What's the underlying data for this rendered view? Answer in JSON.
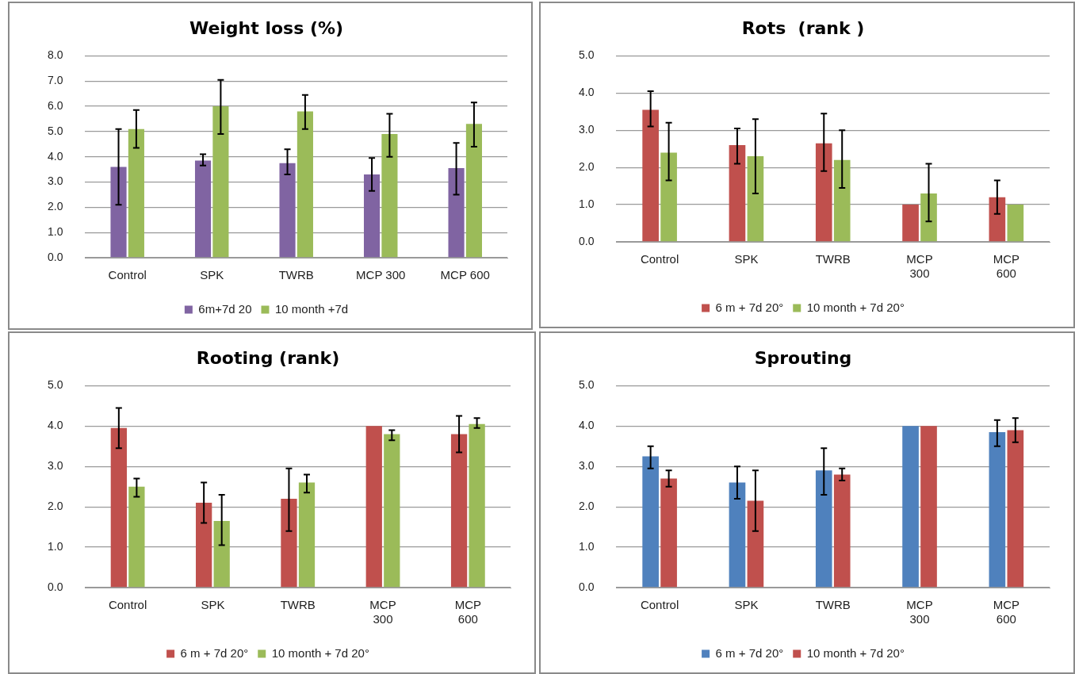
{
  "chart_data": [
    {
      "type": "bar",
      "title": "Weight loss (%)",
      "categories": [
        "Control",
        "SPK",
        "TWRB",
        "MCP 300",
        "MCP 600"
      ],
      "ylim": [
        0,
        8
      ],
      "yticks": [
        {
          "value": 0,
          "label": "0.0"
        },
        {
          "value": 1,
          "label": "1.0"
        },
        {
          "value": 2,
          "label": "2.0"
        },
        {
          "value": 3,
          "label": "3.0"
        },
        {
          "value": 4,
          "label": "4.0"
        },
        {
          "value": 5,
          "label": "5.0"
        },
        {
          "value": 6,
          "label": "6.0"
        },
        {
          "value": 7,
          "label": "7.0"
        },
        {
          "value": 8,
          "label": "8.0"
        }
      ],
      "grid": "y",
      "legend": "bottom",
      "series": [
        {
          "name": "6m+7d 20",
          "color": "#8064a2",
          "values": [
            3.6,
            3.85,
            3.75,
            3.3,
            3.55
          ],
          "errors": [
            [
              2.1,
              5.1
            ],
            [
              3.65,
              4.1
            ],
            [
              3.3,
              4.3
            ],
            [
              2.65,
              3.95
            ],
            [
              2.5,
              4.55
            ]
          ]
        },
        {
          "name": "10 month +7d",
          "color": "#9bbb59",
          "values": [
            5.1,
            6.0,
            5.8,
            4.9,
            5.3
          ],
          "errors": [
            [
              4.35,
              5.85
            ],
            [
              4.9,
              7.05
            ],
            [
              5.1,
              6.45
            ],
            [
              4.0,
              5.7
            ],
            [
              4.4,
              6.15
            ]
          ]
        }
      ]
    },
    {
      "type": "bar",
      "title": "Rots  (rank )",
      "categories": [
        "Control",
        "SPK",
        "TWRB",
        "MCP\n300",
        "MCP\n600"
      ],
      "ylim": [
        0,
        5
      ],
      "yticks": [
        {
          "value": 0,
          "label": "0.0"
        },
        {
          "value": 1,
          "label": "1.0"
        },
        {
          "value": 2,
          "label": "2.0"
        },
        {
          "value": 3,
          "label": "3.0"
        },
        {
          "value": 4,
          "label": "4.0"
        },
        {
          "value": 5,
          "label": "5.0"
        }
      ],
      "grid": "y",
      "legend": "bottom",
      "series": [
        {
          "name": "6 m + 7d 20°",
          "color": "#c0504d",
          "values": [
            3.55,
            2.6,
            2.65,
            1.0,
            1.2
          ],
          "errors": [
            [
              3.1,
              4.05
            ],
            [
              2.1,
              3.05
            ],
            [
              1.9,
              3.45
            ],
            null,
            [
              0.75,
              1.65
            ]
          ]
        },
        {
          "name": "10 month + 7d 20°",
          "color": "#9bbb59",
          "values": [
            2.4,
            2.3,
            2.2,
            1.3,
            1.0
          ],
          "errors": [
            [
              1.65,
              3.2
            ],
            [
              1.3,
              3.3
            ],
            [
              1.45,
              3.0
            ],
            [
              0.55,
              2.1
            ],
            null
          ]
        }
      ]
    },
    {
      "type": "bar",
      "title": "Rooting (rank)",
      "categories": [
        "Control",
        "SPK",
        "TWRB",
        "MCP\n300",
        "MCP\n600"
      ],
      "ylim": [
        0,
        5
      ],
      "yticks": [
        {
          "value": 0,
          "label": "0.0"
        },
        {
          "value": 1,
          "label": "1.0"
        },
        {
          "value": 2,
          "label": "2.0"
        },
        {
          "value": 3,
          "label": "3.0"
        },
        {
          "value": 4,
          "label": "4.0"
        },
        {
          "value": 5,
          "label": "5.0"
        }
      ],
      "grid": "y",
      "legend": "bottom",
      "series": [
        {
          "name": "6 m + 7d 20°",
          "color": "#c0504d",
          "values": [
            3.95,
            2.1,
            2.2,
            4.0,
            3.8
          ],
          "errors": [
            [
              3.45,
              4.45
            ],
            [
              1.6,
              2.6
            ],
            [
              1.4,
              2.95
            ],
            null,
            [
              3.35,
              4.25
            ]
          ]
        },
        {
          "name": "10 month + 7d 20°",
          "color": "#9bbb59",
          "values": [
            2.5,
            1.65,
            2.6,
            3.8,
            4.05
          ],
          "errors": [
            [
              2.25,
              2.7
            ],
            [
              1.05,
              2.3
            ],
            [
              2.35,
              2.8
            ],
            [
              3.65,
              3.9
            ],
            [
              3.95,
              4.2
            ]
          ]
        }
      ]
    },
    {
      "type": "bar",
      "title": "Sprouting",
      "categories": [
        "Control",
        "SPK",
        "TWRB",
        "MCP\n300",
        "MCP\n600"
      ],
      "ylim": [
        0,
        5
      ],
      "yticks": [
        {
          "value": 0,
          "label": "0.0"
        },
        {
          "value": 1,
          "label": "1.0"
        },
        {
          "value": 2,
          "label": "2.0"
        },
        {
          "value": 3,
          "label": "3.0"
        },
        {
          "value": 4,
          "label": "4.0"
        },
        {
          "value": 5,
          "label": "5.0"
        }
      ],
      "grid": "y",
      "legend": "bottom",
      "series": [
        {
          "name": "6 m + 7d 20°",
          "color": "#4f81bd",
          "values": [
            3.25,
            2.6,
            2.9,
            4.0,
            3.85
          ],
          "errors": [
            [
              2.95,
              3.5
            ],
            [
              2.2,
              3.0
            ],
            [
              2.3,
              3.45
            ],
            null,
            [
              3.5,
              4.15
            ]
          ]
        },
        {
          "name": "10 month + 7d 20°",
          "color": "#c0504d",
          "values": [
            2.7,
            2.15,
            2.8,
            4.0,
            3.9
          ],
          "errors": [
            [
              2.5,
              2.9
            ],
            [
              1.4,
              2.9
            ],
            [
              2.65,
              2.95
            ],
            null,
            [
              3.6,
              4.2
            ]
          ]
        }
      ]
    }
  ]
}
